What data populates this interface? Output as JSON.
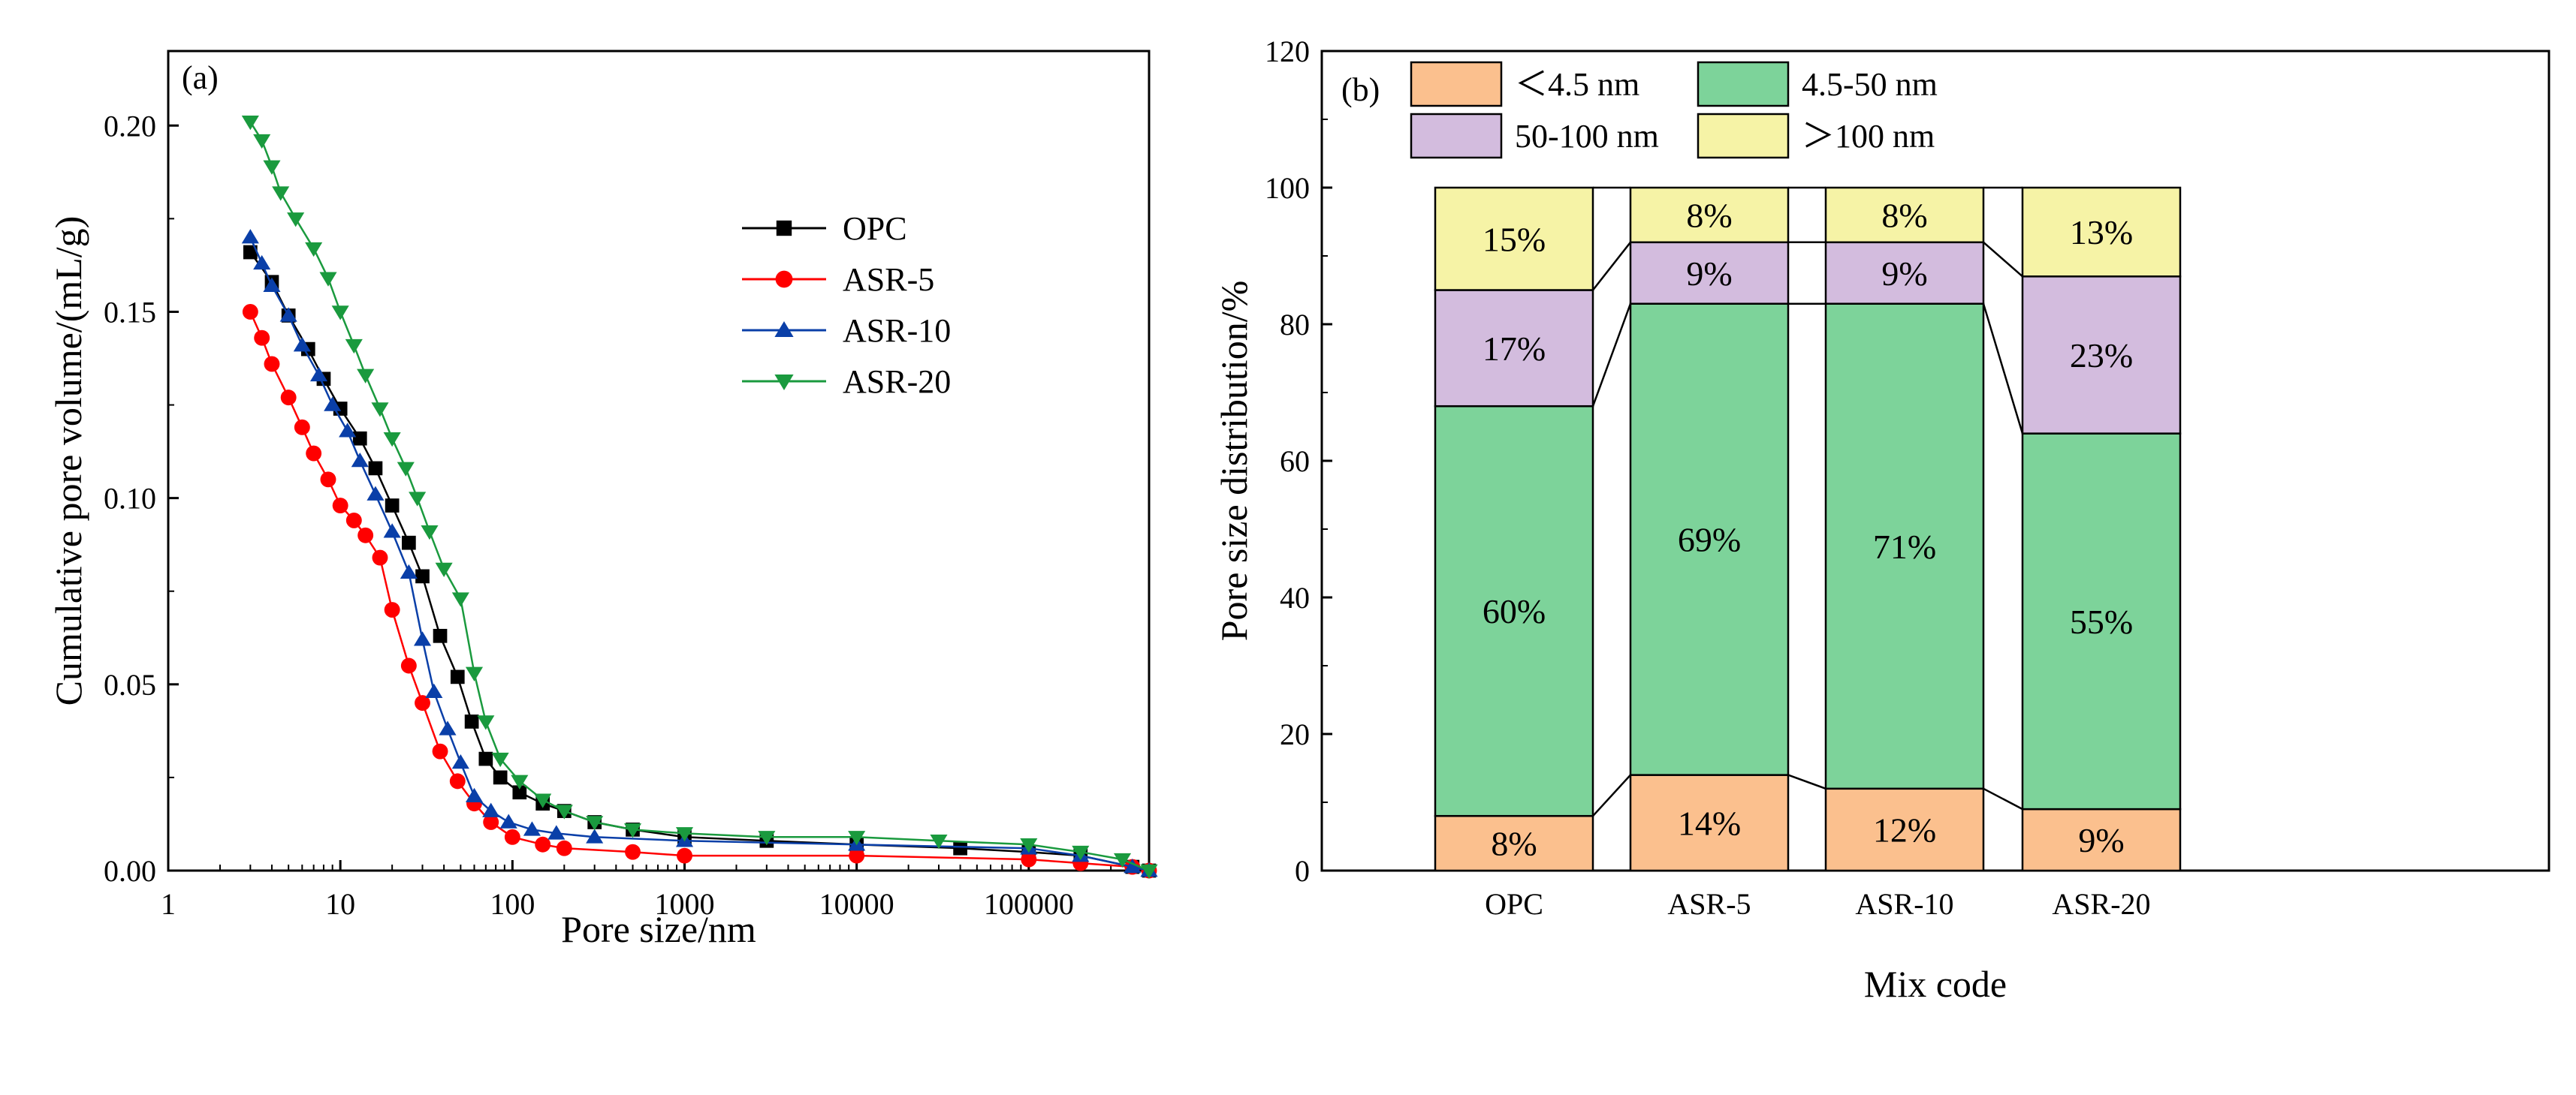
{
  "chart_data": [
    {
      "panel": "(a)",
      "type": "line",
      "xscale": "log",
      "xlabel": "Pore size/nm",
      "ylabel": "Cumulative pore volume/(mL/g)",
      "xlim": [
        1,
        500000
      ],
      "ylim": [
        0,
        0.22
      ],
      "xticks": [
        "1",
        "10",
        "100",
        "1000",
        "10000",
        "100000"
      ],
      "yticks": [
        "0.00",
        "0.05",
        "0.10",
        "0.15",
        "0.20"
      ],
      "legend_position": "upper-middle",
      "series": [
        {
          "name": "OPC",
          "color": "#000000",
          "marker": "square",
          "points": [
            [
              3,
              0.166
            ],
            [
              4,
              0.158
            ],
            [
              5,
              0.149
            ],
            [
              6.5,
              0.14
            ],
            [
              8,
              0.132
            ],
            [
              10,
              0.124
            ],
            [
              13,
              0.116
            ],
            [
              16,
              0.108
            ],
            [
              20,
              0.098
            ],
            [
              25,
              0.088
            ],
            [
              30,
              0.079
            ],
            [
              38,
              0.063
            ],
            [
              48,
              0.052
            ],
            [
              58,
              0.04
            ],
            [
              70,
              0.03
            ],
            [
              85,
              0.025
            ],
            [
              110,
              0.021
            ],
            [
              150,
              0.018
            ],
            [
              200,
              0.016
            ],
            [
              300,
              0.013
            ],
            [
              500,
              0.011
            ],
            [
              1000,
              0.009
            ],
            [
              3000,
              0.008
            ],
            [
              10000,
              0.007
            ],
            [
              40000,
              0.006
            ],
            [
              100000,
              0.005
            ],
            [
              200000,
              0.004
            ],
            [
              400000,
              0.001
            ],
            [
              500000,
              0.0
            ]
          ]
        },
        {
          "name": "ASR-5",
          "color": "#ff0000",
          "marker": "circle",
          "points": [
            [
              3,
              0.15
            ],
            [
              3.5,
              0.143
            ],
            [
              4,
              0.136
            ],
            [
              5,
              0.127
            ],
            [
              6,
              0.119
            ],
            [
              7,
              0.112
            ],
            [
              8.5,
              0.105
            ],
            [
              10,
              0.098
            ],
            [
              12,
              0.094
            ],
            [
              14,
              0.09
            ],
            [
              17,
              0.084
            ],
            [
              20,
              0.07
            ],
            [
              25,
              0.055
            ],
            [
              30,
              0.045
            ],
            [
              38,
              0.032
            ],
            [
              48,
              0.024
            ],
            [
              60,
              0.018
            ],
            [
              75,
              0.013
            ],
            [
              100,
              0.009
            ],
            [
              150,
              0.007
            ],
            [
              200,
              0.006
            ],
            [
              500,
              0.005
            ],
            [
              1000,
              0.004
            ],
            [
              10000,
              0.004
            ],
            [
              100000,
              0.003
            ],
            [
              200000,
              0.002
            ],
            [
              400000,
              0.001
            ],
            [
              500000,
              0.0
            ]
          ]
        },
        {
          "name": "ASR-10",
          "color": "#0a3fa8",
          "marker": "triangle-up",
          "points": [
            [
              3,
              0.17
            ],
            [
              3.5,
              0.163
            ],
            [
              4,
              0.157
            ],
            [
              5,
              0.149
            ],
            [
              6,
              0.141
            ],
            [
              7.5,
              0.133
            ],
            [
              9,
              0.125
            ],
            [
              11,
              0.118
            ],
            [
              13,
              0.11
            ],
            [
              16,
              0.101
            ],
            [
              20,
              0.091
            ],
            [
              25,
              0.08
            ],
            [
              30,
              0.062
            ],
            [
              35,
              0.048
            ],
            [
              42,
              0.038
            ],
            [
              50,
              0.029
            ],
            [
              60,
              0.02
            ],
            [
              75,
              0.016
            ],
            [
              95,
              0.013
            ],
            [
              130,
              0.011
            ],
            [
              180,
              0.01
            ],
            [
              300,
              0.009
            ],
            [
              1000,
              0.008
            ],
            [
              10000,
              0.007
            ],
            [
              100000,
              0.006
            ],
            [
              200000,
              0.004
            ],
            [
              400000,
              0.001
            ],
            [
              500000,
              0.0
            ]
          ]
        },
        {
          "name": "ASR-20",
          "color": "#1a9a3e",
          "marker": "triangle-down",
          "points": [
            [
              3,
              0.201
            ],
            [
              3.5,
              0.196
            ],
            [
              4,
              0.189
            ],
            [
              4.5,
              0.182
            ],
            [
              5.5,
              0.175
            ],
            [
              7,
              0.167
            ],
            [
              8.5,
              0.159
            ],
            [
              10,
              0.15
            ],
            [
              12,
              0.141
            ],
            [
              14,
              0.133
            ],
            [
              17,
              0.124
            ],
            [
              20,
              0.116
            ],
            [
              24,
              0.108
            ],
            [
              28,
              0.1
            ],
            [
              33,
              0.091
            ],
            [
              40,
              0.081
            ],
            [
              50,
              0.073
            ],
            [
              60,
              0.053
            ],
            [
              70,
              0.04
            ],
            [
              85,
              0.03
            ],
            [
              110,
              0.024
            ],
            [
              150,
              0.019
            ],
            [
              200,
              0.016
            ],
            [
              300,
              0.013
            ],
            [
              500,
              0.011
            ],
            [
              1000,
              0.01
            ],
            [
              3000,
              0.009
            ],
            [
              10000,
              0.009
            ],
            [
              30000,
              0.008
            ],
            [
              100000,
              0.007
            ],
            [
              200000,
              0.005
            ],
            [
              350000,
              0.003
            ],
            [
              500000,
              0.0
            ]
          ]
        }
      ]
    },
    {
      "panel": "(b)",
      "type": "bar",
      "stacked": true,
      "xlabel": "Mix code",
      "ylabel": "Pore size distribution/%",
      "ylim": [
        0,
        120
      ],
      "yticks": [
        "0",
        "20",
        "40",
        "60",
        "80",
        "100",
        "120"
      ],
      "categories": [
        "OPC",
        "ASR-5",
        "ASR-10",
        "ASR-20"
      ],
      "legend_position": "top",
      "series": [
        {
          "name": "＜4.5 nm",
          "color": "#fbc08e",
          "values": [
            8,
            14,
            12,
            9
          ],
          "labels": [
            "8%",
            "14%",
            "12%",
            "9%"
          ]
        },
        {
          "name": "4.5-50 nm",
          "color": "#7dd39a",
          "values": [
            60,
            69,
            71,
            55
          ],
          "labels": [
            "60%",
            "69%",
            "71%",
            "55%"
          ]
        },
        {
          "name": "50-100 nm",
          "color": "#d3bcde",
          "values": [
            17,
            9,
            9,
            23
          ],
          "labels": [
            "17%",
            "9%",
            "9%",
            "23%"
          ]
        },
        {
          "name": "＞100 nm",
          "color": "#f6f3a6",
          "values": [
            15,
            8,
            8,
            13
          ],
          "labels": [
            "15%",
            "8%",
            "8%",
            "13%"
          ]
        }
      ]
    }
  ]
}
